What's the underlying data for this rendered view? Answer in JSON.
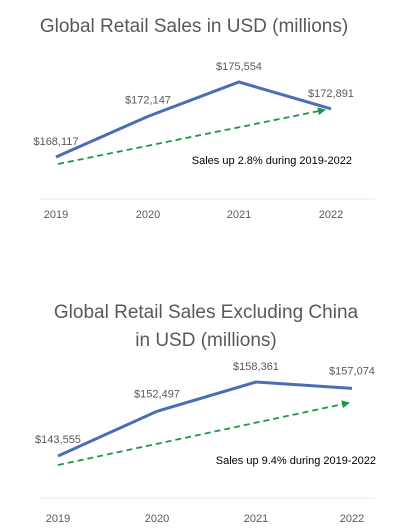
{
  "chart_data": [
    {
      "type": "line",
      "title": "Global Retail Sales in USD (millions)",
      "categories": [
        "2019",
        "2020",
        "2021",
        "2022"
      ],
      "series": [
        {
          "values": [
            168117,
            172147,
            175554,
            172891
          ],
          "labels": [
            "$168,117",
            "$172,147",
            "$175,554",
            "$172,891"
          ],
          "color": "#4A6DB5"
        }
      ],
      "trend": {
        "style": "dashed-arrow",
        "color": "#1A9A48",
        "from": "2019",
        "to": "2022"
      },
      "annotation": "Sales up 2.8% during 2019-2022",
      "grid": false,
      "legend": "none"
    },
    {
      "type": "line",
      "title": [
        "Global Retail Sales Excluding China",
        "in USD (millions)"
      ],
      "categories": [
        "2019",
        "2020",
        "2021",
        "2022"
      ],
      "series": [
        {
          "values": [
            143555,
            152497,
            158361,
            157074
          ],
          "labels": [
            "$143,555",
            "$152,497",
            "$158,361",
            "$157,074"
          ],
          "color": "#4A6DB5"
        }
      ],
      "trend": {
        "style": "dashed-arrow",
        "color": "#1A9A48",
        "from": "2019",
        "to": "2022"
      },
      "annotation": "Sales up 9.4% during 2019-2022",
      "grid": false,
      "legend": "none"
    }
  ]
}
